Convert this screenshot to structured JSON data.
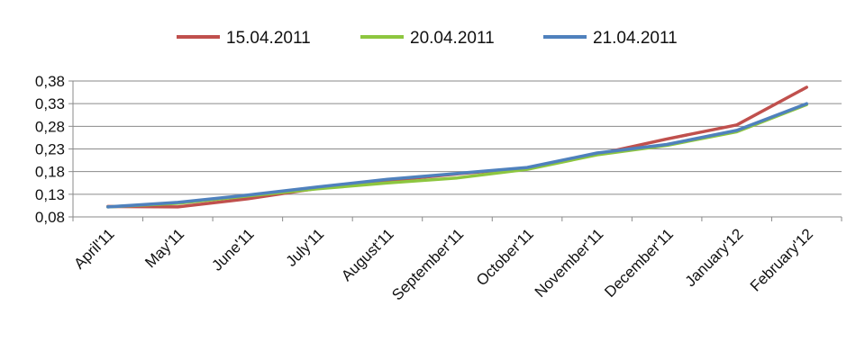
{
  "chart_data": {
    "type": "line",
    "title": "",
    "xlabel": "",
    "ylabel": "",
    "categories": [
      "April'11",
      "May'11",
      "June'11",
      "July'11",
      "August'11",
      "September'11",
      "October'11",
      "November'11",
      "December'11",
      "January'12",
      "February'12"
    ],
    "ylim": [
      0.08,
      0.38
    ],
    "yticks": [
      0.08,
      0.13,
      0.18,
      0.23,
      0.28,
      0.33,
      0.38
    ],
    "ytick_labels": [
      "0,08",
      "0,13",
      "0,18",
      "0,23",
      "0,28",
      "0,33",
      "0,38"
    ],
    "grid": true,
    "legend_position": "top-center",
    "series": [
      {
        "name": "15.04.2011",
        "color": "#c0504d",
        "values": [
          0.103,
          0.102,
          0.12,
          0.143,
          0.16,
          0.175,
          0.188,
          0.218,
          0.252,
          0.283,
          0.366
        ]
      },
      {
        "name": "20.04.2011",
        "color": "#8dc63f",
        "values": [
          0.102,
          0.11,
          0.126,
          0.142,
          0.155,
          0.166,
          0.185,
          0.217,
          0.238,
          0.268,
          0.328
        ]
      },
      {
        "name": "21.04.2011",
        "color": "#4f81bd",
        "values": [
          0.102,
          0.112,
          0.128,
          0.146,
          0.163,
          0.176,
          0.189,
          0.221,
          0.24,
          0.271,
          0.33
        ]
      }
    ]
  }
}
